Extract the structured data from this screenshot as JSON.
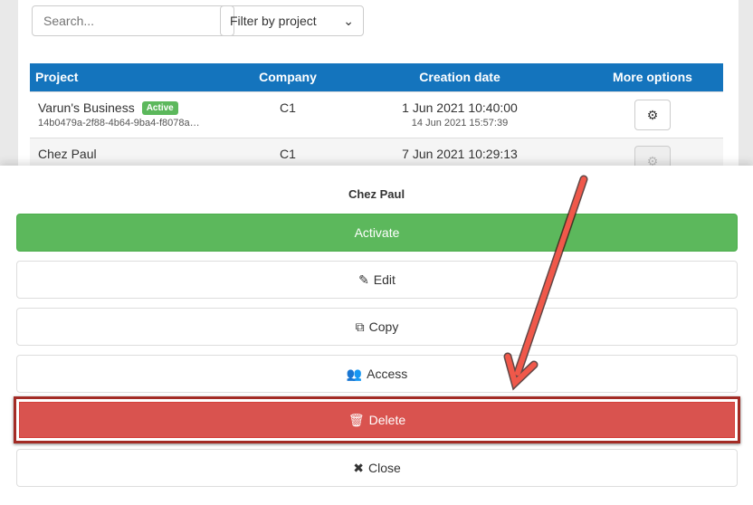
{
  "toolbar": {
    "search_placeholder": "Search...",
    "filter_label": "Filter by project"
  },
  "table": {
    "headers": [
      "Project",
      "Company",
      "Creation date",
      "More options"
    ],
    "rows": [
      {
        "name": "Varun's Business",
        "badge": "Active",
        "id": "14b0479a-2f88-4b64-9ba4-f8078a…",
        "company": "C1",
        "created": "1 Jun 2021 10:40:00",
        "updated": "14 Jun 2021 15:57:39"
      },
      {
        "name": "Chez Paul",
        "company": "C1",
        "created": "7 Jun 2021 10:29:13"
      }
    ]
  },
  "sheet": {
    "title": "Chez Paul",
    "activate": "Activate",
    "edit": "Edit",
    "copy": "Copy",
    "access": "Access",
    "delete": "Delete",
    "close": "Close"
  },
  "colors": {
    "header": "#1474bd",
    "activate": "#5cb85c",
    "delete": "#d9534f",
    "arrow": "#f0584a"
  }
}
